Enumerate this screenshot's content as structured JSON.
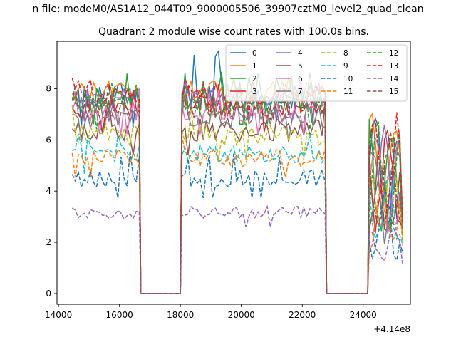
{
  "figure": {
    "suptitle": "n file: modeM0/AS1A12_044T09_9000005506_39907cztM0_level2_quad_clean",
    "colors": {
      "axes": "#000000",
      "background": "#ffffff",
      "legend_border": "#cccccc"
    }
  },
  "chart_data": {
    "type": "line",
    "title": "Quadrant 2 module wise count rates with 100.0s bins.",
    "xlabel": "",
    "ylabel": "",
    "x_offset_label": "+4.14e8",
    "xlim": [
      13950,
      25550
    ],
    "ylim": [
      -0.42,
      9.85
    ],
    "xticks": [
      14000,
      16000,
      18000,
      20000,
      22000,
      24000
    ],
    "yticks": [
      0,
      2,
      4,
      6,
      8
    ],
    "grid": false,
    "legend": {
      "placement": "top-right",
      "columns": 4
    },
    "segments": [
      {
        "start": 14450,
        "end": 16650
      },
      {
        "start": 18050,
        "end": 22750
      },
      {
        "start": 24200,
        "end": 25300
      }
    ],
    "gap_level": 0,
    "series": [
      {
        "name": "0",
        "color": "#1f77b4",
        "dash": "solid",
        "base": 7.7,
        "amp": 0.55,
        "peak": 9.5
      },
      {
        "name": "1",
        "color": "#ff7f0e",
        "dash": "solid",
        "base": 7.9,
        "amp": 0.4,
        "peak": 8.6
      },
      {
        "name": "2",
        "color": "#2ca02c",
        "dash": "solid",
        "base": 7.6,
        "amp": 0.45,
        "peak": 8.8
      },
      {
        "name": "3",
        "color": "#d62728",
        "dash": "solid",
        "base": 7.3,
        "amp": 0.45,
        "peak": 8.3
      },
      {
        "name": "4",
        "color": "#9467bd",
        "dash": "solid",
        "base": 7.6,
        "amp": 0.4,
        "peak": 8.5
      },
      {
        "name": "5",
        "color": "#8c564b",
        "dash": "solid",
        "base": 6.4,
        "amp": 0.45,
        "peak": 7.6
      },
      {
        "name": "6",
        "color": "#e377c2",
        "dash": "solid",
        "base": 7.1,
        "amp": 0.4,
        "peak": 8.2
      },
      {
        "name": "7",
        "color": "#7f7f7f",
        "dash": "solid",
        "base": 6.9,
        "amp": 0.45,
        "peak": 8.0
      },
      {
        "name": "8",
        "color": "#bcbd22",
        "dash": "dashed",
        "base": 6.2,
        "amp": 0.45,
        "peak": 7.5
      },
      {
        "name": "9",
        "color": "#17becf",
        "dash": "dashed",
        "base": 5.45,
        "amp": 0.35,
        "peak": 6.5
      },
      {
        "name": "10",
        "color": "#1f77b4",
        "dash": "dashed",
        "base": 4.5,
        "amp": 0.35,
        "peak": 5.6
      },
      {
        "name": "11",
        "color": "#ff7f0e",
        "dash": "dashed",
        "base": 5.3,
        "amp": 0.35,
        "peak": 6.3
      },
      {
        "name": "12",
        "color": "#2ca02c",
        "dash": "dashed",
        "base": 7.4,
        "amp": 0.45,
        "peak": 8.4
      },
      {
        "name": "13",
        "color": "#d62728",
        "dash": "dashed",
        "base": 7.8,
        "amp": 0.4,
        "peak": 8.6
      },
      {
        "name": "14",
        "color": "#9467bd",
        "dash": "dashed",
        "base": 3.15,
        "amp": 0.25,
        "peak": 3.8
      },
      {
        "name": "15",
        "color": "#8c564b",
        "dash": "dashed",
        "base": 7.2,
        "amp": 0.4,
        "peak": 8.2
      }
    ]
  }
}
